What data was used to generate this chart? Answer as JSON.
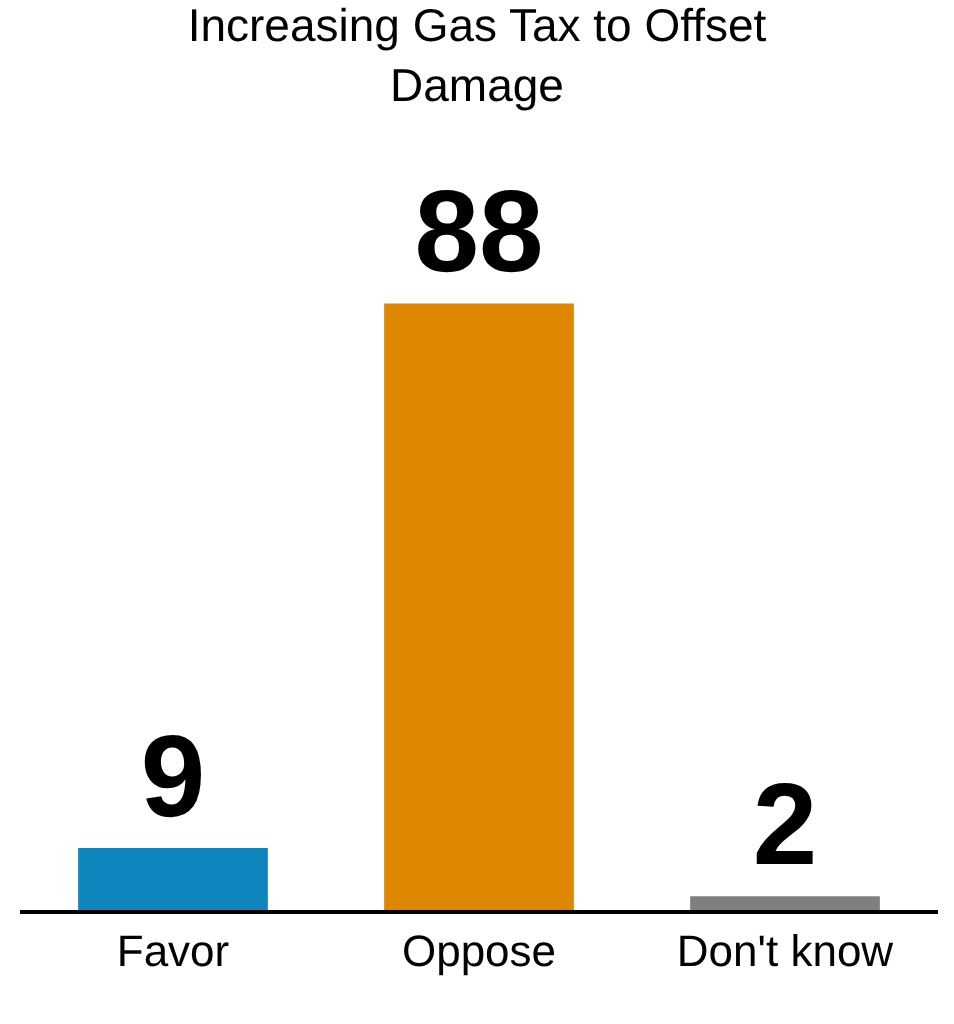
{
  "chart_data": {
    "type": "bar",
    "title": "Increasing Gas Tax to Offset Damage",
    "categories": [
      "Favor",
      "Oppose",
      "Don't know"
    ],
    "values": [
      9,
      88,
      2
    ],
    "colors": [
      "#0e85bd",
      "#df8600",
      "#7f7f7f"
    ],
    "data_labels": true
  }
}
